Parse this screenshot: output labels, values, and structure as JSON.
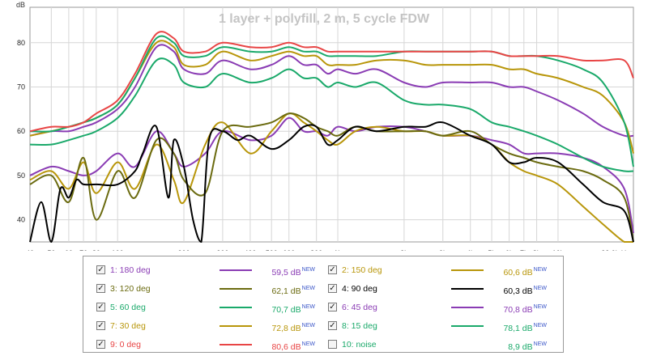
{
  "chart_data": {
    "type": "line",
    "title": "1 layer + polyfill, 2 m, 5 cycle FDW",
    "ylabel": "dB",
    "xunit": "Hz",
    "xscale": "log",
    "xlim": [
      40,
      22000
    ],
    "ylim": [
      35,
      88
    ],
    "grid": true,
    "legend_position": "bottom",
    "x_ticks": [
      {
        "v": 40,
        "t": "40"
      },
      {
        "v": 50,
        "t": "50"
      },
      {
        "v": 60,
        "t": "60"
      },
      {
        "v": 70,
        "t": "70"
      },
      {
        "v": 80,
        "t": "80"
      },
      {
        "v": 100,
        "t": "100"
      },
      {
        "v": 200,
        "t": "200"
      },
      {
        "v": 300,
        "t": "300"
      },
      {
        "v": 400,
        "t": "400"
      },
      {
        "v": 500,
        "t": "500"
      },
      {
        "v": 600,
        "t": "600"
      },
      {
        "v": 800,
        "t": "800"
      },
      {
        "v": 1000,
        "t": "1k"
      },
      {
        "v": 2000,
        "t": "2k"
      },
      {
        "v": 3000,
        "t": "3k"
      },
      {
        "v": 4000,
        "t": "4k"
      },
      {
        "v": 5000,
        "t": "5k"
      },
      {
        "v": 6000,
        "t": "6k"
      },
      {
        "v": 7000,
        "t": "7k"
      },
      {
        "v": 8000,
        "t": "8k"
      },
      {
        "v": 10000,
        "t": "10k"
      },
      {
        "v": 22000,
        "t": "22,0k Hz"
      }
    ],
    "y_ticks": [
      40,
      50,
      60,
      70,
      80
    ],
    "series": [
      {
        "name": "1: 180 deg",
        "value": "59,5 dB",
        "checked": true,
        "color": "#8a3cb4",
        "x": [
          40,
          50,
          60,
          70,
          80,
          100,
          120,
          150,
          180,
          200,
          250,
          300,
          400,
          500,
          600,
          700,
          800,
          900,
          1000,
          1200,
          1500,
          2000,
          2500,
          3000,
          4000,
          5000,
          6000,
          7000,
          8000,
          10000,
          13000,
          16000,
          20000,
          22000
        ],
        "y": [
          50,
          52,
          51,
          50,
          51,
          55,
          52,
          60,
          55,
          52,
          55,
          60,
          58,
          59,
          63,
          60,
          60,
          59,
          61,
          60,
          61,
          61,
          60,
          59,
          59,
          58,
          57,
          55,
          55,
          55,
          54,
          52,
          47,
          37
        ]
      },
      {
        "name": "2: 150 deg",
        "value": "60,6 dB",
        "checked": true,
        "color": "#b8960a",
        "x": [
          40,
          50,
          60,
          70,
          80,
          100,
          120,
          150,
          180,
          200,
          250,
          300,
          400,
          500,
          600,
          700,
          800,
          900,
          1000,
          1200,
          1500,
          2000,
          2500,
          3000,
          4000,
          5000,
          6000,
          7000,
          8000,
          10000,
          13000,
          16000,
          20000,
          22000
        ],
        "y": [
          49,
          51,
          47,
          53,
          46,
          53,
          47,
          57,
          49,
          44,
          57,
          62,
          55,
          60,
          64,
          62,
          60,
          58,
          57,
          60,
          61,
          60,
          60,
          59,
          59,
          57,
          53,
          51,
          50,
          48,
          43,
          39,
          35,
          35
        ]
      },
      {
        "name": "3: 120 deg",
        "value": "62,1 dB",
        "checked": true,
        "color": "#6b6b10",
        "x": [
          40,
          50,
          60,
          70,
          80,
          100,
          120,
          150,
          180,
          200,
          250,
          300,
          400,
          500,
          600,
          700,
          800,
          900,
          1000,
          1200,
          1500,
          2000,
          2500,
          3000,
          4000,
          5000,
          6000,
          7000,
          8000,
          10000,
          13000,
          16000,
          20000,
          22000
        ],
        "y": [
          48,
          50,
          44,
          54,
          40,
          51,
          45,
          58,
          55,
          49,
          46,
          60,
          61,
          62,
          64,
          63,
          61,
          60,
          59,
          61,
          60,
          60,
          60,
          59,
          60,
          57,
          55,
          54,
          53,
          52,
          51,
          49,
          45,
          35
        ]
      },
      {
        "name": "4: 90 deg",
        "value": "60,3 dB",
        "checked": true,
        "color": "#000000",
        "x": [
          40,
          45,
          50,
          55,
          60,
          65,
          70,
          80,
          100,
          120,
          130,
          150,
          170,
          180,
          200,
          220,
          240,
          260,
          300,
          350,
          400,
          500,
          600,
          700,
          800,
          900,
          1000,
          1200,
          1500,
          2000,
          2500,
          3000,
          4000,
          5000,
          6000,
          7000,
          8000,
          10000,
          13000,
          16000,
          20000,
          22000
        ],
        "y": [
          35,
          44,
          35,
          47,
          45,
          49,
          48,
          48,
          48,
          51,
          55,
          61,
          45,
          58,
          52,
          40,
          35,
          58,
          60,
          58,
          59,
          56,
          58,
          61,
          61,
          57,
          58,
          61,
          60,
          61,
          61,
          62,
          59,
          57,
          53,
          53,
          54,
          53,
          48,
          44,
          42,
          35
        ]
      },
      {
        "name": "5: 60 deg",
        "value": "70,7 dB",
        "checked": true,
        "color": "#1aa96a",
        "x": [
          40,
          50,
          60,
          70,
          80,
          100,
          120,
          150,
          180,
          200,
          250,
          300,
          400,
          500,
          600,
          700,
          800,
          900,
          1000,
          1200,
          1500,
          2000,
          2500,
          3000,
          4000,
          5000,
          6000,
          7000,
          8000,
          10000,
          13000,
          16000,
          20000,
          22000
        ],
        "y": [
          57,
          57,
          58,
          59,
          60,
          63,
          68,
          76,
          75,
          71,
          70,
          73,
          71,
          72,
          74,
          72,
          72,
          70,
          71,
          70,
          71,
          67,
          66,
          66,
          65,
          62,
          61,
          60,
          59,
          57,
          54,
          52,
          51,
          51
        ]
      },
      {
        "name": "6: 45 deg",
        "value": "70,8 dB",
        "checked": true,
        "color": "#8a3cb4",
        "x": [
          40,
          50,
          60,
          70,
          80,
          100,
          120,
          150,
          180,
          200,
          250,
          300,
          400,
          500,
          600,
          700,
          800,
          900,
          1000,
          1200,
          1500,
          2000,
          2500,
          3000,
          4000,
          5000,
          6000,
          7000,
          8000,
          10000,
          13000,
          16000,
          20000,
          22000
        ],
        "y": [
          59,
          60,
          60,
          61,
          62,
          65,
          70,
          79,
          78,
          74,
          73,
          76,
          74,
          75,
          77,
          75,
          75,
          73,
          74,
          73,
          74,
          71,
          70,
          71,
          71,
          71,
          70,
          70,
          69,
          67,
          64,
          61,
          59,
          59
        ]
      },
      {
        "name": "7: 30 deg",
        "value": "72,8 dB",
        "checked": true,
        "color": "#b8960a",
        "x": [
          40,
          50,
          60,
          70,
          80,
          100,
          120,
          150,
          180,
          200,
          250,
          300,
          400,
          500,
          600,
          700,
          800,
          900,
          1000,
          1200,
          1500,
          2000,
          2500,
          3000,
          4000,
          5000,
          6000,
          7000,
          8000,
          10000,
          13000,
          16000,
          20000,
          22000
        ],
        "y": [
          59,
          60,
          61,
          62,
          63,
          66,
          72,
          80,
          79,
          75,
          75,
          78,
          76,
          77,
          78,
          77,
          77,
          75,
          75,
          75,
          76,
          76,
          75,
          75,
          75,
          75,
          74,
          74,
          73,
          72,
          70,
          68,
          62,
          55
        ]
      },
      {
        "name": "8: 15 deg",
        "value": "78,1 dB",
        "checked": true,
        "color": "#1aa96a",
        "x": [
          40,
          50,
          60,
          70,
          80,
          100,
          120,
          150,
          180,
          200,
          250,
          300,
          400,
          500,
          600,
          700,
          800,
          900,
          1000,
          1200,
          1500,
          2000,
          2500,
          3000,
          4000,
          5000,
          6000,
          7000,
          8000,
          10000,
          13000,
          16000,
          20000,
          22000
        ],
        "y": [
          60,
          60,
          61,
          62,
          63,
          66,
          72,
          81,
          80,
          77,
          77,
          79,
          78,
          78,
          79,
          78,
          78,
          77,
          77,
          77,
          77,
          78,
          78,
          78,
          78,
          78,
          77,
          77,
          77,
          76,
          74,
          71,
          62,
          52
        ]
      },
      {
        "name": "9: 0 deg",
        "value": "80,6 dB",
        "checked": true,
        "color": "#e84545",
        "x": [
          40,
          50,
          60,
          70,
          80,
          100,
          120,
          150,
          180,
          200,
          250,
          300,
          400,
          500,
          600,
          700,
          800,
          900,
          1000,
          1200,
          1500,
          2000,
          2500,
          3000,
          4000,
          5000,
          6000,
          7000,
          8000,
          10000,
          13000,
          16000,
          20000,
          22000
        ],
        "y": [
          60,
          61,
          61,
          62,
          64,
          67,
          73,
          82,
          81,
          78,
          78,
          80,
          79,
          79,
          80,
          79,
          79,
          78,
          78,
          78,
          78,
          78,
          78,
          78,
          78,
          78,
          77,
          77,
          77,
          77,
          76,
          76,
          76,
          72
        ]
      },
      {
        "name": "10: noise",
        "value": "8,9 dB",
        "checked": false,
        "color": "#1aa96a",
        "x": [],
        "y": []
      }
    ]
  },
  "legend_new_tag": "NEW"
}
